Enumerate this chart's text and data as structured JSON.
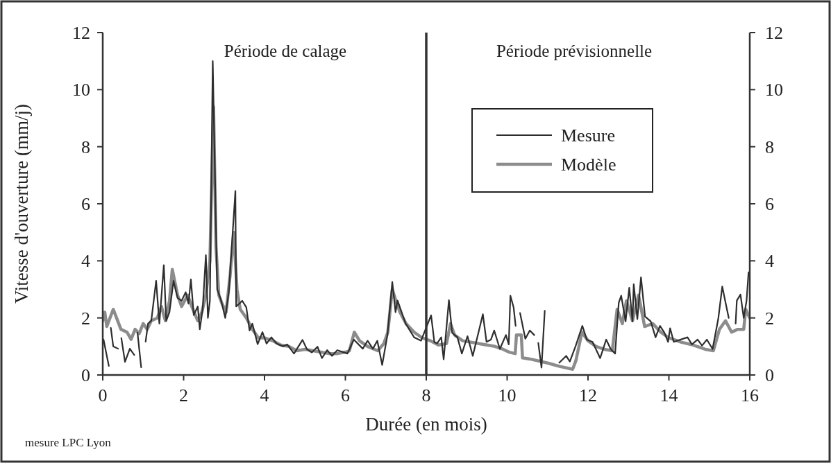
{
  "chart_data": {
    "type": "line",
    "xlabel": "Durée (en mois)",
    "ylabel": "Vitesse d'ouverture (mm/j)",
    "xlim": [
      0,
      16
    ],
    "xticks": [
      0,
      2,
      4,
      6,
      8,
      10,
      12,
      14,
      16
    ],
    "ylim": [
      0,
      12
    ],
    "yticks": [
      0,
      2,
      4,
      6,
      8,
      10,
      12
    ],
    "y2lim": [
      0,
      12
    ],
    "y2ticks": [
      0,
      2,
      4,
      6,
      8,
      10,
      12
    ],
    "legend": "top right",
    "grid": false,
    "ref_lines": [
      {
        "axis": "x",
        "value": 8,
        "color": "#333333"
      }
    ],
    "annotations": [
      "Période de calage",
      "Période prévisionnelle",
      "mesure LPC Lyon"
    ],
    "series": [
      {
        "name": "Modèle",
        "color": "#8c8c8c",
        "x": [
          0,
          0.05,
          0.1,
          0.26,
          0.45,
          0.6,
          0.7,
          0.8,
          0.9,
          1.0,
          1.1,
          1.2,
          1.35,
          1.45,
          1.55,
          1.65,
          1.72,
          1.85,
          1.95,
          2.1,
          2.2,
          2.35,
          2.45,
          2.55,
          2.65,
          2.74,
          2.8,
          2.87,
          2.95,
          3.05,
          3.15,
          3.24,
          3.32,
          3.4,
          3.55,
          3.7,
          3.85,
          4.0,
          4.2,
          4.4,
          4.6,
          4.8,
          5.0,
          5.2,
          5.4,
          5.6,
          5.8,
          6.0,
          6.1,
          6.22,
          6.35,
          6.55,
          6.8,
          6.95,
          7.05,
          7.16,
          7.25,
          7.35,
          7.5,
          7.7,
          7.9,
          8.1,
          8.3,
          8.5,
          8.6,
          8.7,
          8.9,
          9.1,
          9.3,
          9.5,
          9.7,
          9.9,
          10.05,
          10.2,
          10.23,
          10.35,
          10.38,
          10.6,
          11.0,
          11.3,
          11.62,
          11.7,
          11.85,
          12.0,
          12.2,
          12.4,
          12.6,
          12.72,
          12.85,
          12.95,
          13.1,
          13.25,
          13.4,
          13.6,
          13.8,
          14.0,
          14.3,
          14.6,
          14.9,
          15.1,
          15.25,
          15.4,
          15.55,
          15.7,
          15.85,
          15.9,
          16.0
        ],
        "values": [
          1.9,
          2.2,
          1.7,
          2.3,
          1.6,
          1.5,
          1.25,
          1.6,
          1.45,
          1.8,
          1.6,
          1.9,
          2.0,
          2.4,
          1.9,
          2.6,
          3.7,
          2.8,
          2.4,
          2.8,
          2.4,
          1.9,
          2.2,
          2.8,
          4.0,
          9.4,
          4.5,
          2.8,
          2.5,
          2.2,
          3.5,
          5.0,
          3.0,
          2.3,
          2.0,
          1.6,
          1.3,
          1.3,
          1.2,
          1.05,
          1.0,
          0.85,
          0.9,
          0.85,
          0.8,
          0.75,
          0.75,
          0.8,
          0.85,
          1.5,
          1.2,
          1.0,
          0.85,
          1.1,
          1.5,
          3.0,
          2.6,
          2.2,
          1.8,
          1.5,
          1.3,
          1.2,
          1.05,
          1.1,
          1.8,
          1.4,
          1.2,
          1.15,
          1.1,
          1.05,
          1.0,
          0.9,
          0.8,
          0.75,
          1.4,
          1.4,
          0.6,
          0.55,
          0.42,
          0.3,
          0.2,
          0.5,
          1.5,
          1.2,
          1.0,
          0.9,
          0.85,
          2.3,
          1.8,
          2.6,
          1.9,
          2.8,
          1.7,
          1.8,
          1.5,
          1.3,
          1.15,
          1.05,
          0.9,
          0.85,
          1.6,
          1.9,
          1.5,
          1.6,
          1.6,
          2.3,
          2.0
        ]
      },
      {
        "name": "Mesure",
        "color": "#2e2e2e",
        "x": [
          0.02,
          0.15,
          0.17,
          0.2,
          0.26,
          0.38,
          0.42,
          0.46,
          0.55,
          0.67,
          0.78,
          0.82,
          0.86,
          0.95,
          1.0,
          1.06,
          1.12,
          1.2,
          1.32,
          1.4,
          1.51,
          1.57,
          1.65,
          1.75,
          1.85,
          1.95,
          2.05,
          2.12,
          2.18,
          2.25,
          2.35,
          2.4,
          2.47,
          2.55,
          2.6,
          2.65,
          2.72,
          2.83,
          2.92,
          3.03,
          3.12,
          3.17,
          3.28,
          3.3,
          3.45,
          3.55,
          3.63,
          3.7,
          3.83,
          3.95,
          4.05,
          4.17,
          4.3,
          4.46,
          4.56,
          4.73,
          4.94,
          5.05,
          5.17,
          5.31,
          5.42,
          5.55,
          5.67,
          5.8,
          6.05,
          6.21,
          6.43,
          6.55,
          6.68,
          6.79,
          6.91,
          7.04,
          7.16,
          7.24,
          7.29,
          7.49,
          7.7,
          7.87,
          8.12,
          8.2,
          8.27,
          8.37,
          8.43,
          8.56,
          8.64,
          8.77,
          8.88,
          9.02,
          9.15,
          9.29,
          9.4,
          9.49,
          9.6,
          9.68,
          9.82,
          9.97,
          10.04,
          10.08,
          10.16,
          10.21,
          10.26,
          10.32,
          10.45,
          10.56,
          10.67,
          10.72,
          10.77,
          10.85,
          10.93,
          11.1,
          11.29,
          11.46,
          11.55,
          11.69,
          11.86,
          11.97,
          12.11,
          12.3,
          12.45,
          12.56,
          12.67,
          12.76,
          12.82,
          12.93,
          13.02,
          13.1,
          13.13,
          13.22,
          13.31,
          13.41,
          13.55,
          13.67,
          13.78,
          13.89,
          13.98,
          14.03,
          14.12,
          14.46,
          14.57,
          14.71,
          14.82,
          14.94,
          15.08,
          15.22,
          15.32,
          15.39,
          15.48,
          15.56,
          15.65,
          15.68,
          15.77,
          15.85,
          15.92,
          15.97
        ],
        "values": [
          1.24,
          0.32,
          null,
          1.65,
          1.0,
          0.92,
          null,
          1.29,
          0.46,
          0.92,
          0.7,
          null,
          1.48,
          0.27,
          null,
          1.17,
          1.8,
          1.9,
          3.3,
          1.8,
          3.85,
          1.9,
          2.2,
          3.3,
          2.7,
          2.6,
          2.9,
          2.5,
          3.35,
          2.1,
          2.4,
          1.6,
          2.3,
          4.2,
          2.0,
          2.6,
          11.0,
          3.0,
          2.65,
          2.0,
          2.94,
          4.07,
          6.45,
          2.4,
          2.6,
          2.37,
          1.56,
          1.8,
          1.08,
          1.5,
          1.1,
          1.32,
          1.1,
          1.0,
          1.07,
          0.75,
          1.23,
          0.9,
          0.79,
          0.99,
          0.59,
          0.87,
          0.67,
          0.87,
          0.75,
          1.24,
          0.92,
          1.2,
          0.92,
          1.2,
          0.35,
          1.4,
          3.26,
          2.2,
          2.61,
          1.8,
          1.32,
          1.2,
          2.09,
          1.15,
          1.11,
          1.32,
          0.55,
          2.62,
          1.48,
          1.32,
          0.75,
          1.36,
          0.67,
          1.48,
          2.13,
          1.16,
          1.24,
          1.56,
          0.91,
          1.4,
          1.07,
          2.78,
          2.37,
          1.72,
          null,
          2.17,
          1.27,
          1.56,
          1.4,
          null,
          1.12,
          0.26,
          2.25,
          null,
          0.43,
          0.67,
          0.47,
          1.0,
          1.72,
          1.24,
          1.16,
          0.59,
          1.24,
          0.91,
          0.75,
          2.53,
          2.78,
          1.88,
          3.06,
          1.88,
          3.18,
          1.96,
          3.42,
          2.05,
          1.88,
          1.32,
          1.72,
          1.48,
          1.16,
          1.64,
          1.16,
          1.32,
          1.07,
          1.24,
          1.03,
          1.24,
          0.91,
          1.96,
          3.1,
          2.61,
          2.0,
          null,
          1.8,
          2.61,
          2.82,
          2.0,
          2.6,
          3.6
        ]
      }
    ]
  }
}
